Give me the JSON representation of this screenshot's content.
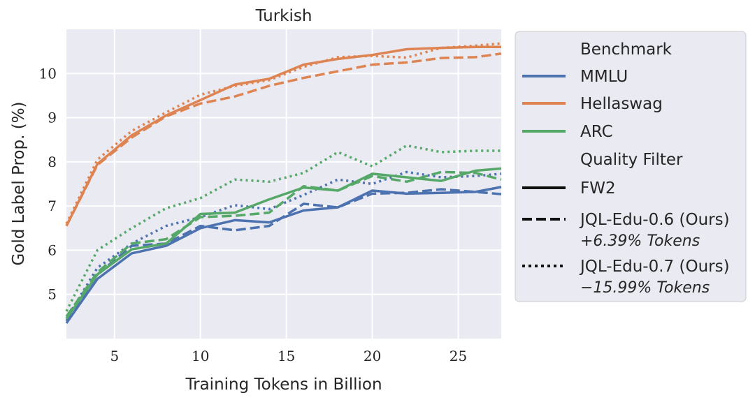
{
  "chart_data": {
    "type": "line",
    "title": "Turkish",
    "xlabel": "Training Tokens in Billion",
    "ylabel": "Gold Label Prop. (%)",
    "xlim": [
      2.2,
      27.5
    ],
    "ylim": [
      4.0,
      11.0
    ],
    "xticks": [
      5,
      10,
      15,
      20,
      25
    ],
    "yticks": [
      5,
      6,
      7,
      8,
      9,
      10
    ],
    "grid": true,
    "legend_position": "right",
    "colors": {
      "MMLU": "#4c72b0",
      "Hellaswag": "#dd8452",
      "ARC": "#55a868"
    },
    "legend": {
      "benchmark_heading": "Benchmark",
      "benchmarks": [
        "MMLU",
        "Hellaswag",
        "ARC"
      ],
      "filter_heading": "Quality Filter",
      "filters": [
        {
          "label": "FW2",
          "style": "solid",
          "note": ""
        },
        {
          "label": "JQL-Edu-0.6 (Ours)",
          "style": "dashed",
          "note": "+6.39% Tokens"
        },
        {
          "label": "JQL-Edu-0.7 (Ours)",
          "style": "dotted",
          "note": "−15.99% Tokens"
        }
      ]
    },
    "series": [
      {
        "benchmark": "MMLU",
        "filter": "FW2",
        "x": [
          2.2,
          4,
          6,
          8,
          10,
          12,
          14,
          16,
          18,
          20,
          22,
          24,
          26,
          27.5
        ],
        "values": [
          4.35,
          5.35,
          5.93,
          6.1,
          6.5,
          6.68,
          6.63,
          6.9,
          6.97,
          7.35,
          7.28,
          7.3,
          7.32,
          7.43
        ]
      },
      {
        "benchmark": "MMLU",
        "filter": "JQL-Edu-0.6 (Ours)",
        "x": [
          2.2,
          4,
          6,
          8,
          10,
          12,
          14,
          16,
          18,
          20,
          22,
          24,
          26,
          27.5
        ],
        "values": [
          4.4,
          5.45,
          6.1,
          6.15,
          6.55,
          6.45,
          6.55,
          7.05,
          6.97,
          7.28,
          7.3,
          7.38,
          7.32,
          7.27
        ]
      },
      {
        "benchmark": "MMLU",
        "filter": "JQL-Edu-0.7 (Ours)",
        "x": [
          2.2,
          4,
          6,
          8,
          10,
          12,
          14,
          16,
          18,
          20,
          22,
          24,
          26,
          27.5
        ],
        "values": [
          4.45,
          5.6,
          6.15,
          6.55,
          6.75,
          7.02,
          6.93,
          7.25,
          7.6,
          7.5,
          7.77,
          7.65,
          7.68,
          7.73
        ]
      },
      {
        "benchmark": "Hellaswag",
        "filter": "FW2",
        "x": [
          2.2,
          4,
          6,
          8,
          10,
          12,
          14,
          16,
          18,
          20,
          22,
          24,
          26,
          27.5
        ],
        "values": [
          6.55,
          7.95,
          8.6,
          9.05,
          9.4,
          9.75,
          9.88,
          10.2,
          10.33,
          10.42,
          10.55,
          10.58,
          10.6,
          10.6
        ]
      },
      {
        "benchmark": "Hellaswag",
        "filter": "JQL-Edu-0.6 (Ours)",
        "x": [
          2.2,
          4,
          6,
          8,
          10,
          12,
          14,
          16,
          18,
          20,
          22,
          24,
          26,
          27.5
        ],
        "values": [
          6.55,
          7.93,
          8.55,
          9.03,
          9.32,
          9.48,
          9.72,
          9.9,
          10.05,
          10.2,
          10.25,
          10.35,
          10.37,
          10.45
        ]
      },
      {
        "benchmark": "Hellaswag",
        "filter": "JQL-Edu-0.7 (Ours)",
        "x": [
          2.2,
          4,
          6,
          8,
          10,
          12,
          14,
          16,
          18,
          20,
          22,
          24,
          26,
          27.5
        ],
        "values": [
          6.6,
          8.05,
          8.7,
          9.12,
          9.52,
          9.72,
          9.85,
          10.15,
          10.37,
          10.4,
          10.36,
          10.58,
          10.63,
          10.68
        ]
      },
      {
        "benchmark": "ARC",
        "filter": "FW2",
        "x": [
          2.2,
          4,
          6,
          8,
          10,
          12,
          14,
          16,
          18,
          20,
          22,
          24,
          26,
          27.5
        ],
        "values": [
          4.45,
          5.45,
          6.02,
          6.15,
          6.82,
          6.85,
          7.15,
          7.42,
          7.35,
          7.73,
          7.65,
          7.57,
          7.8,
          7.85
        ]
      },
      {
        "benchmark": "ARC",
        "filter": "JQL-Edu-0.6 (Ours)",
        "x": [
          2.2,
          4,
          6,
          8,
          10,
          12,
          14,
          16,
          18,
          20,
          22,
          24,
          26,
          27.5
        ],
        "values": [
          4.5,
          5.5,
          6.15,
          6.25,
          6.75,
          6.78,
          6.85,
          7.45,
          7.35,
          7.68,
          7.55,
          7.77,
          7.75,
          7.6
        ]
      },
      {
        "benchmark": "ARC",
        "filter": "JQL-Edu-0.7 (Ours)",
        "x": [
          2.2,
          4,
          6,
          8,
          10,
          12,
          14,
          16,
          18,
          20,
          22,
          24,
          26,
          27.5
        ],
        "values": [
          4.62,
          6.0,
          6.5,
          6.95,
          7.18,
          7.6,
          7.55,
          7.75,
          8.22,
          7.9,
          8.37,
          8.22,
          8.25,
          8.25
        ]
      }
    ]
  }
}
